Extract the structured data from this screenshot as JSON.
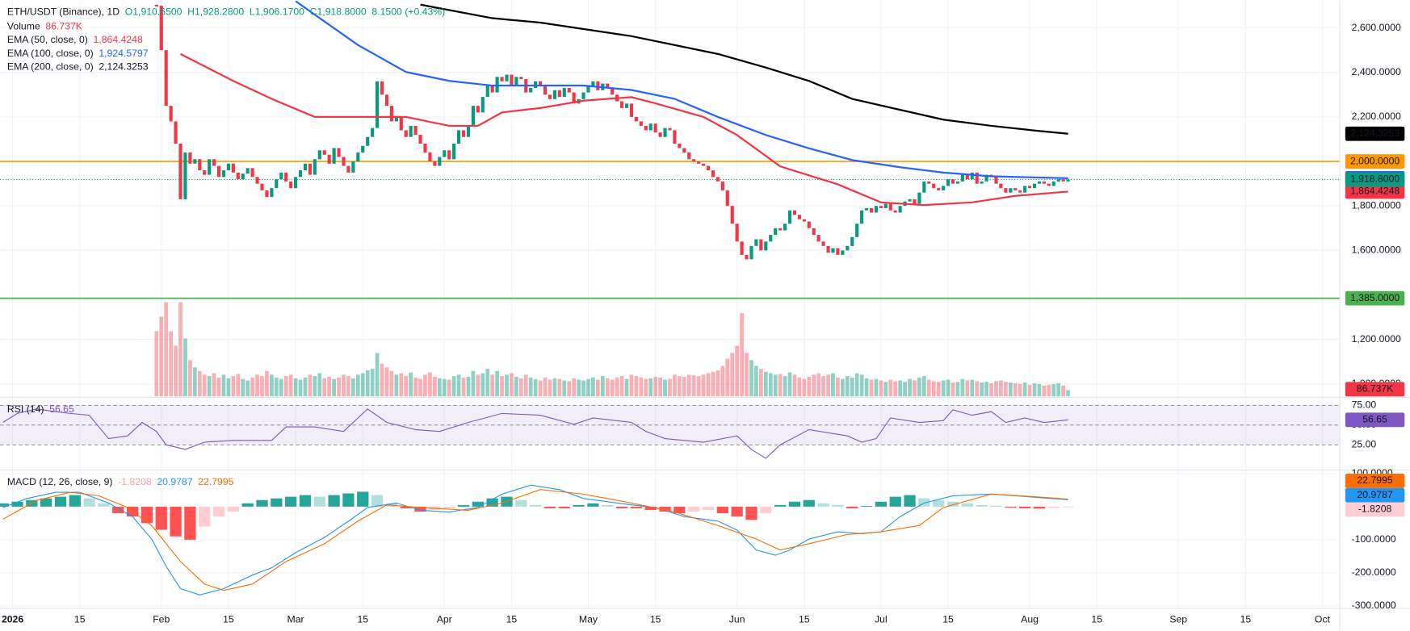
{
  "chart_data": {
    "type": "candlestick",
    "title": "ETH/USDT (Binance), 1D",
    "ohlc_labels": [
      "O1,910.6500",
      "H1,928.2800",
      "L1,906.1700",
      "C1,918.8000"
    ],
    "change": "8.1500 (+0.43%)",
    "xlim": [
      -2.62,
      276.65
    ],
    "xticks": [
      {
        "value": 0,
        "label": "2026"
      },
      {
        "value": 14,
        "label": "15"
      },
      {
        "value": 31,
        "label": "Feb"
      },
      {
        "value": 45,
        "label": "15"
      },
      {
        "value": 59,
        "label": "Mar"
      },
      {
        "value": 73,
        "label": "15"
      },
      {
        "value": 90,
        "label": "Apr"
      },
      {
        "value": 104,
        "label": "15"
      },
      {
        "value": 120,
        "label": "May"
      },
      {
        "value": 134,
        "label": "15"
      },
      {
        "value": 151,
        "label": "Jun"
      },
      {
        "value": 165,
        "label": "15"
      },
      {
        "value": 181,
        "label": "Jul"
      },
      {
        "value": 195,
        "label": "15"
      },
      {
        "value": 212,
        "label": "Aug"
      },
      {
        "value": 226,
        "label": "15"
      },
      {
        "value": 243,
        "label": "Sep"
      },
      {
        "value": 257,
        "label": "15"
      },
      {
        "value": 273,
        "label": "Oct"
      }
    ],
    "ylim": [
      944,
      2725
    ],
    "yticks": [
      {
        "value": 2600,
        "label": "2,600.0000"
      },
      {
        "value": 2400,
        "label": "2,400.0000"
      },
      {
        "value": 2200,
        "label": "2,200.0000"
      },
      {
        "value": 1800,
        "label": "1,800.0000"
      },
      {
        "value": 1600,
        "label": "1,600.0000"
      },
      {
        "value": 1200,
        "label": "1,200.0000"
      },
      {
        "value": 1000,
        "label": "1,000.0000"
      }
    ],
    "grid": true,
    "up_color": "#089981",
    "down_color": "#f23645",
    "x": [
      30,
      31,
      32,
      33,
      34,
      35,
      36,
      37,
      38,
      39,
      40,
      41,
      42,
      43,
      44,
      45,
      46,
      47,
      48,
      49,
      50,
      51,
      52,
      53,
      54,
      55,
      56,
      57,
      58,
      59,
      60,
      61,
      62,
      63,
      64,
      65,
      66,
      67,
      68,
      69,
      70,
      71,
      72,
      73,
      74,
      75,
      76,
      77,
      78,
      79,
      80,
      81,
      82,
      83,
      84,
      85,
      86,
      87,
      88,
      89,
      90,
      91,
      92,
      93,
      94,
      95,
      96,
      97,
      98,
      99,
      100,
      101,
      102,
      103,
      104,
      105,
      106,
      107,
      108,
      109,
      110,
      111,
      112,
      113,
      114,
      115,
      116,
      117,
      118,
      119,
      120,
      121,
      122,
      123,
      124,
      125,
      126,
      127,
      128,
      129,
      130,
      131,
      132,
      133,
      134,
      135,
      136,
      137,
      138,
      139,
      140,
      141,
      142,
      143,
      144,
      145,
      146,
      147,
      148,
      149,
      150,
      151,
      152,
      153,
      154,
      155,
      156,
      157,
      158,
      159,
      160,
      161,
      162,
      163,
      164,
      165,
      166,
      167,
      168,
      169,
      170,
      171,
      172,
      173,
      174,
      175,
      176,
      177,
      178,
      179,
      180,
      181,
      182,
      183,
      184,
      185,
      186,
      187,
      188,
      189,
      190,
      191,
      192,
      193,
      194,
      195,
      196,
      197,
      198,
      199,
      200,
      201,
      202,
      203,
      204,
      205,
      206,
      207,
      208,
      209,
      210,
      211,
      212,
      213,
      214,
      215,
      216,
      217,
      218,
      219,
      220
    ],
    "close": [
      2700,
      2500,
      2250,
      2180,
      2080,
      1830,
      2040,
      1990,
      2010,
      1960,
      1940,
      2010,
      1980,
      1930,
      1960,
      1990,
      1950,
      1920,
      1945,
      1970,
      1930,
      1900,
      1870,
      1840,
      1880,
      1920,
      1950,
      1910,
      1880,
      1930,
      1960,
      1990,
      1940,
      2010,
      2050,
      2030,
      1990,
      2060,
      2020,
      1980,
      1950,
      2000,
      2040,
      2070,
      2110,
      2150,
      2360,
      2300,
      2250,
      2180,
      2200,
      2140,
      2110,
      2160,
      2120,
      2080,
      2040,
      2000,
      1980,
      2020,
      2050,
      2010,
      2080,
      2140,
      2110,
      2160,
      2250,
      2220,
      2290,
      2340,
      2310,
      2380,
      2360,
      2390,
      2340,
      2380,
      2370,
      2310,
      2330,
      2360,
      2340,
      2300,
      2280,
      2320,
      2290,
      2330,
      2310,
      2260,
      2280,
      2310,
      2340,
      2360,
      2320,
      2350,
      2330,
      2300,
      2270,
      2240,
      2260,
      2200,
      2180,
      2160,
      2140,
      2170,
      2130,
      2110,
      2150,
      2140,
      2080,
      2060,
      2040,
      2010,
      2000,
      1990,
      1980,
      1960,
      1930,
      1910,
      1870,
      1800,
      1720,
      1640,
      1580,
      1560,
      1620,
      1650,
      1600,
      1640,
      1670,
      1700,
      1690,
      1720,
      1780,
      1760,
      1740,
      1730,
      1700,
      1670,
      1640,
      1620,
      1590,
      1610,
      1580,
      1600,
      1620,
      1660,
      1720,
      1780,
      1790,
      1770,
      1800,
      1790,
      1810,
      1780,
      1770,
      1800,
      1820,
      1830,
      1810,
      1860,
      1910,
      1900,
      1880,
      1870,
      1890,
      1920,
      1900,
      1910,
      1940,
      1920,
      1950,
      1900,
      1910,
      1940,
      1930,
      1900,
      1880,
      1860,
      1880,
      1870,
      1860,
      1890,
      1880,
      1900,
      1910,
      1900,
      1890,
      1910,
      1920,
      1910,
      1918.8
    ],
    "last_label": "1,918.8000",
    "volume_name": "Volume",
    "volume_label": "86.737K",
    "volume_ylim": [
      0,
      5470
    ],
    "volume": [
      900,
      1100,
      1300,
      900,
      700,
      1300,
      800,
      500,
      400,
      350,
      300,
      280,
      320,
      260,
      300,
      250,
      280,
      310,
      240,
      220,
      260,
      300,
      280,
      350,
      300,
      260,
      240,
      280,
      300,
      250,
      230,
      260,
      300,
      280,
      320,
      250,
      270,
      240,
      260,
      300,
      280,
      250,
      300,
      320,
      360,
      380,
      600,
      450,
      400,
      350,
      300,
      320,
      280,
      330,
      260,
      240,
      300,
      330,
      270,
      250,
      240,
      230,
      280,
      300,
      260,
      270,
      350,
      300,
      320,
      380,
      300,
      350,
      280,
      300,
      320,
      270,
      250,
      300,
      260,
      240,
      220,
      260,
      230,
      250,
      240,
      220,
      210,
      250,
      230,
      220,
      240,
      260,
      230,
      280,
      250,
      230,
      260,
      280,
      240,
      300,
      280,
      260,
      240,
      250,
      270,
      260,
      230,
      240,
      300,
      280,
      270,
      300,
      290,
      280,
      300,
      320,
      340,
      360,
      420,
      520,
      600,
      700,
      1150,
      600,
      500,
      420,
      380,
      340,
      320,
      300,
      310,
      280,
      330,
      300,
      260,
      240,
      270,
      300,
      320,
      280,
      300,
      320,
      260,
      240,
      280,
      260,
      320,
      300,
      250,
      230,
      240,
      220,
      200,
      230,
      210,
      220,
      200,
      240,
      220,
      260,
      280,
      230,
      210,
      200,
      220,
      230,
      190,
      200,
      240,
      220,
      230,
      210,
      190,
      200,
      180,
      210,
      220,
      200,
      190,
      180,
      170,
      190,
      160,
      180,
      170,
      150,
      160,
      170,
      180,
      150,
      86.737
    ],
    "series": [
      {
        "name": "EMA (50, close, 0)",
        "color": "#f23645",
        "value_label": "1,864.4248",
        "x": [
          35,
          46,
          54,
          63,
          72,
          82,
          91,
          97,
          102,
          110,
          119,
          129,
          134,
          144,
          151,
          160,
          172,
          181,
          190,
          200,
          209,
          220
        ],
        "values": [
          2483,
          2362,
          2281,
          2200,
          2200,
          2200,
          2160,
          2160,
          2220,
          2240,
          2273,
          2289,
          2261,
          2200,
          2119,
          1978,
          1897,
          1816,
          1804,
          1816,
          1845,
          1864.4248
        ]
      },
      {
        "name": "EMA (100, close, 0)",
        "color": "#2962ff",
        "value_label": "1,924.5797",
        "x": [
          59,
          72,
          82,
          91,
          100,
          110,
          119,
          129,
          138,
          147,
          157,
          166,
          175,
          185,
          194,
          204,
          220
        ],
        "values": [
          2720,
          2523,
          2402,
          2362,
          2341,
          2341,
          2341,
          2321,
          2281,
          2200,
          2119,
          2059,
          2006,
          1974,
          1950,
          1933,
          1924.5797
        ]
      },
      {
        "name": "EMA (200, close, 0)",
        "color": "#000000",
        "value_label": "2,124.3253",
        "x": [
          85,
          100,
          110,
          129,
          147,
          157,
          166,
          175,
          185,
          194,
          204,
          213,
          220
        ],
        "values": [
          2705,
          2644,
          2624,
          2563,
          2483,
          2422,
          2362,
          2281,
          2232,
          2188,
          2160,
          2139,
          2124.3253
        ]
      }
    ],
    "hlines": [
      {
        "value": 2000,
        "label": "2,000.0000",
        "color": "#ff9800"
      },
      {
        "value": 1385,
        "label": "1,385.0000",
        "color": "#4caf50"
      }
    ],
    "rsi": {
      "name": "RSI (14)",
      "color": "#7e57c2",
      "ylim": [
        -5.7,
        84.1
      ],
      "yticks": [
        {
          "value": 75,
          "label": "75.00"
        },
        {
          "value": 50,
          "label": "50.00"
        },
        {
          "value": 25,
          "label": "25.00"
        }
      ],
      "x": [
        -2,
        1,
        5,
        9,
        12,
        16,
        20,
        24,
        27,
        30,
        32,
        36,
        40,
        46,
        54,
        57,
        63,
        69,
        74,
        78,
        84,
        89,
        95,
        102,
        110,
        117,
        121,
        129,
        132,
        136,
        144,
        151,
        154,
        157,
        160,
        166,
        174,
        177,
        180,
        183,
        189,
        194,
        196,
        200,
        204,
        207,
        211,
        215,
        220
      ],
      "values": [
        53.4,
        64.8,
        70.5,
        67,
        64.8,
        62.5,
        33,
        36.4,
        53.4,
        42,
        25,
        19.3,
        28.4,
        30.7,
        30.7,
        47.7,
        47.7,
        42,
        70.5,
        53.4,
        44.3,
        42,
        53.4,
        64.8,
        62.5,
        51.1,
        59.1,
        53.4,
        42,
        33,
        28.4,
        36.4,
        19.3,
        8,
        25,
        44.3,
        36.4,
        28.4,
        33,
        59.1,
        53.4,
        55.7,
        69.3,
        62.5,
        67,
        53.4,
        59.1,
        53.4,
        56.65
      ]
    },
    "macd": {
      "name": "MACD (12, 26, close, 9)",
      "ylim": [
        -305,
        108
      ],
      "yticks": [
        {
          "value": 100,
          "label": "100.0000"
        },
        {
          "value": -100,
          "label": "-100.0000"
        },
        {
          "value": -200,
          "label": "-200.0000"
        },
        {
          "value": -300,
          "label": "-300.0000"
        }
      ],
      "hist_x": [
        -2,
        1,
        4,
        7,
        10,
        13,
        16,
        19,
        22,
        25,
        28,
        31,
        34,
        37,
        40,
        43,
        46,
        49,
        52,
        55,
        58,
        61,
        64,
        67,
        70,
        73,
        76,
        79,
        82,
        85,
        88,
        91,
        94,
        97,
        100,
        103,
        106,
        109,
        112,
        115,
        118,
        121,
        124,
        127,
        130,
        133,
        136,
        139,
        142,
        145,
        148,
        151,
        154,
        157,
        160,
        163,
        166,
        169,
        172,
        175,
        178,
        181,
        184,
        187,
        190,
        193,
        196,
        199,
        202,
        205,
        208,
        211,
        214,
        217,
        220
      ],
      "hist": [
        10,
        15,
        20,
        25,
        30,
        35,
        25,
        10,
        -20,
        -30,
        -50,
        -70,
        -90,
        -100,
        -60,
        -30,
        -15,
        10,
        20,
        25,
        30,
        35,
        30,
        35,
        40,
        45,
        35,
        10,
        -5,
        -15,
        -10,
        -5,
        5,
        15,
        25,
        30,
        20,
        5,
        -5,
        -5,
        5,
        10,
        5,
        -5,
        -5,
        -10,
        -15,
        -20,
        -15,
        -10,
        -20,
        -30,
        -40,
        -20,
        5,
        15,
        20,
        10,
        5,
        -5,
        2,
        15,
        30,
        35,
        25,
        20,
        15,
        10,
        5,
        3,
        -3,
        -5,
        -6,
        -4,
        -1.8208
      ],
      "macd_line": {
        "color": "#2196f3",
        "x": [
          -2,
          3,
          9,
          14,
          20,
          25,
          29,
          32,
          35,
          39,
          44,
          50,
          54,
          59,
          65,
          70,
          74,
          80,
          85,
          91,
          97,
          102,
          108,
          114,
          119,
          129,
          134,
          140,
          147,
          151,
          155,
          159,
          162,
          166,
          172,
          177,
          181,
          185,
          190,
          196,
          204,
          209,
          220
        ],
        "values": [
          -2.7,
          24.5,
          43.6,
          43.6,
          10.9,
          -30,
          -98,
          -180,
          -248,
          -267,
          -248,
          -207,
          -185,
          -139,
          -93,
          -44,
          -2.7,
          10.9,
          -10.9,
          -16.3,
          -2.7,
          38,
          65,
          51.5,
          24.5,
          5.4,
          -2.7,
          -30,
          -43.6,
          -71,
          -131,
          -147,
          -131,
          -98,
          -76,
          -82,
          -76,
          -30,
          10.9,
          32.7,
          38,
          32.7,
          20.9787
        ]
      },
      "signal_line": {
        "color": "#ff6d00",
        "x": [
          -2,
          5,
          12,
          18,
          24,
          29,
          35,
          40,
          44,
          50,
          57,
          65,
          72,
          78,
          85,
          95,
          102,
          110,
          119,
          129,
          138,
          147,
          155,
          160,
          166,
          174,
          181,
          189,
          194,
          204,
          213,
          220
        ],
        "values": [
          -38,
          19,
          43.6,
          32.7,
          -2.7,
          -57,
          -166,
          -234,
          -253,
          -234,
          -166,
          -112,
          -43.6,
          5.4,
          -2.7,
          -10.9,
          10.9,
          51.8,
          38,
          10.9,
          -16.3,
          -57,
          -98,
          -131,
          -112,
          -84,
          -76,
          -57,
          -2.7,
          38,
          30,
          22.7995
        ]
      }
    }
  }
}
